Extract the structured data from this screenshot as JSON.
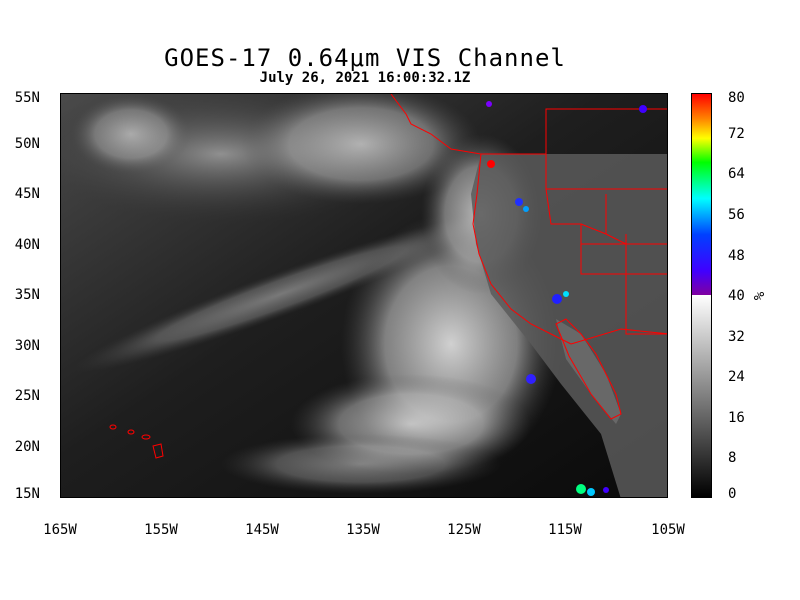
{
  "title": "GOES-17  0.64μm VIS Channel",
  "subtitle": "July 26,  2021 16:00:32.1Z",
  "lat_labels": [
    "55N",
    "50N",
    "45N",
    "40N",
    "35N",
    "30N",
    "25N",
    "20N",
    "15N"
  ],
  "lon_labels": [
    "165W",
    "155W",
    "145W",
    "135W",
    "125W",
    "115W",
    "105W"
  ],
  "colorbar": {
    "ticks": [
      "80",
      "72",
      "64",
      "56",
      "48",
      "40",
      "32",
      "24",
      "16",
      "8",
      "0"
    ],
    "unit": "%",
    "range": [
      0,
      80
    ]
  },
  "colors": {
    "boundary": "#ff0000",
    "ocean_dark": "#111111",
    "cloud": "#e8e8e8"
  }
}
